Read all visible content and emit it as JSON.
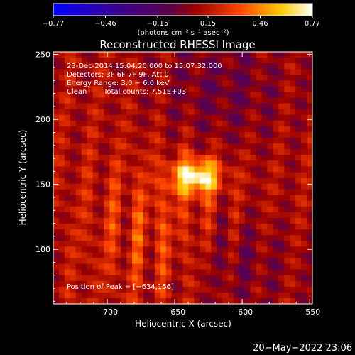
{
  "chart_data": {
    "type": "heatmap",
    "title": "Reconstructed RHESSI Image",
    "xlabel": "Heliocentric X (arcsec)",
    "ylabel": "Heliocentric Y (arcsec)",
    "xlim": [
      -740,
      -548
    ],
    "ylim": [
      58,
      252
    ],
    "xticks": [
      -700,
      -650,
      -600,
      -550
    ],
    "yticks": [
      100,
      150,
      200,
      250
    ],
    "xtick_labels": [
      "−700",
      "−650",
      "−600",
      "−550"
    ],
    "ytick_labels": [
      "100",
      "150",
      "200",
      "250"
    ],
    "colorbar": {
      "range": [
        -0.77,
        0.77
      ],
      "ticks": [
        -0.77,
        -0.46,
        -0.15,
        0.15,
        0.46,
        0.77
      ],
      "tick_labels": [
        "−0.77",
        "−0.46",
        "−0.15",
        "0.15",
        "0.46",
        "0.77"
      ],
      "unit_label": "(photons cm⁻² s⁻¹ asec⁻²)",
      "colors": [
        "#0000ff",
        "#3a0090",
        "#5a004a",
        "#9a0000",
        "#ff4400",
        "#ffcc00",
        "#ffffff"
      ]
    },
    "annotations": {
      "time_range": "23-Dec-2014 15:04:20.000 to 15:07:32.000",
      "detectors": "Detectors: 3F 6F 7F 9F, Att 0",
      "energy": "Energy Range: 3.0 − 6.0 keV",
      "algorithm": "Clean",
      "counts": "Total counts: 7.51E+03",
      "peak": "Position of Peak = [−634,156]"
    },
    "peak": {
      "x": -634,
      "y": 156,
      "value": 0.77
    },
    "footer": "20−May−2022 23:06"
  }
}
